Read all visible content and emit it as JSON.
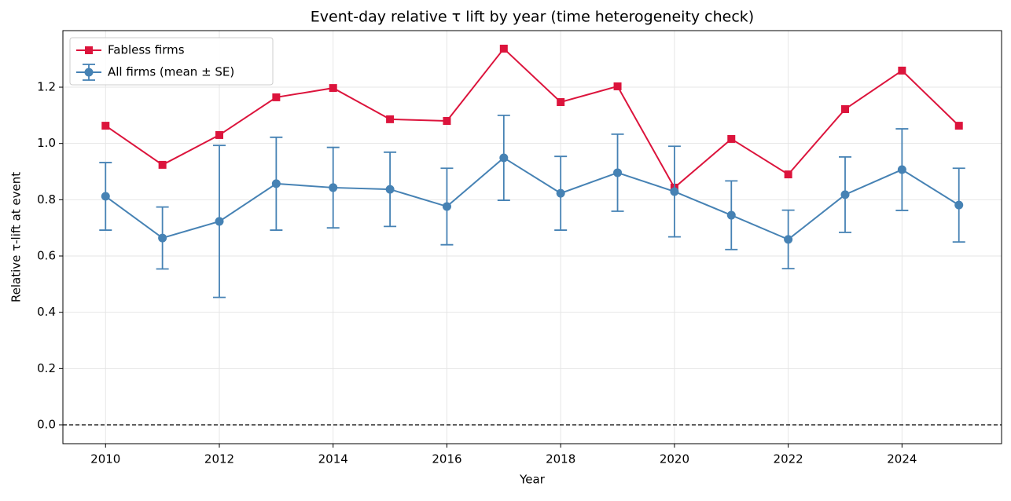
{
  "chart_data": {
    "type": "line",
    "title": "Event-day relative τ lift by year (time heterogeneity check)",
    "xlabel": "Year",
    "ylabel": "Relative τ-lift at event",
    "x": [
      2010,
      2011,
      2012,
      2013,
      2014,
      2015,
      2016,
      2017,
      2018,
      2019,
      2020,
      2021,
      2022,
      2023,
      2024,
      2025
    ],
    "series": [
      {
        "name": "Fabless firms",
        "color": "#dc143c",
        "marker": "square",
        "values": [
          1.063,
          0.924,
          1.03,
          1.164,
          1.197,
          1.086,
          1.08,
          1.337,
          1.147,
          1.203,
          0.843,
          1.016,
          0.89,
          1.122,
          1.259,
          1.063
        ]
      },
      {
        "name": "All firms (mean ± SE)",
        "color": "#4682b4",
        "marker": "circle",
        "values": [
          0.812,
          0.664,
          0.723,
          0.857,
          0.843,
          0.837,
          0.776,
          0.949,
          0.823,
          0.896,
          0.829,
          0.745,
          0.659,
          0.818,
          0.907,
          0.781
        ],
        "error": [
          0.12,
          0.11,
          0.27,
          0.165,
          0.143,
          0.132,
          0.136,
          0.151,
          0.131,
          0.137,
          0.161,
          0.122,
          0.104,
          0.134,
          0.145,
          0.131
        ]
      }
    ],
    "xlim": [
      2009.25,
      2025.75
    ],
    "xticks": [
      2010,
      2012,
      2014,
      2016,
      2018,
      2020,
      2022,
      2024
    ],
    "ylim": [
      -0.067,
      1.401
    ],
    "yticks": [
      {
        "value": 0,
        "label": "0.0"
      },
      0.2,
      0.4,
      0.6,
      0.8,
      {
        "value": 1,
        "label": "1.0"
      },
      1.2
    ],
    "hline": 0,
    "grid": true,
    "legend": "upper left"
  }
}
